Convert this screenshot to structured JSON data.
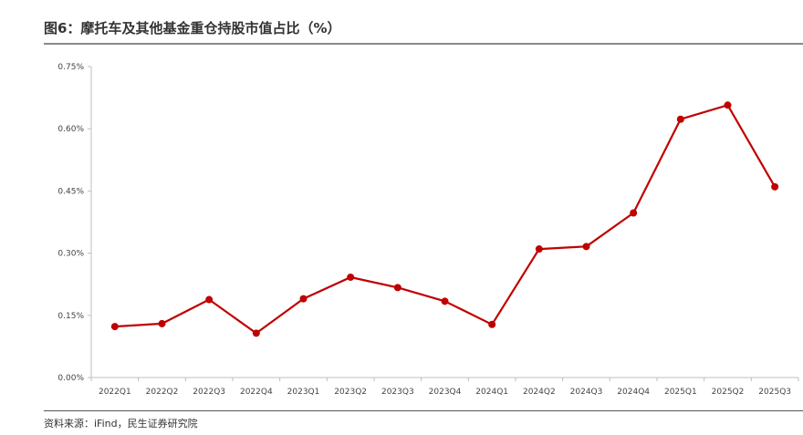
{
  "title": "图6：摩托车及其他基金重仓持股市值占比（%）",
  "source": "资料来源：iFind，民生证券研究院",
  "colors": {
    "line": "#c00000",
    "axis": "#bfbfbf",
    "rule": "#8a8a8a"
  },
  "chart_data": {
    "type": "line",
    "title": "图6：摩托车及其他基金重仓持股市值占比（%）",
    "xlabel": "",
    "ylabel": "",
    "ylim": [
      0,
      0.75
    ],
    "yticks": [
      0,
      0.15,
      0.3,
      0.45,
      0.6,
      0.75
    ],
    "ytick_labels": [
      "0.00%",
      "0.15%",
      "0.30%",
      "0.45%",
      "0.60%",
      "0.75%"
    ],
    "grid": false,
    "legend": "none",
    "categories": [
      "2022Q1",
      "2022Q2",
      "2022Q3",
      "2022Q4",
      "2023Q1",
      "2023Q2",
      "2023Q3",
      "2023Q4",
      "2024Q1",
      "2024Q2",
      "2024Q3",
      "2024Q4",
      "2025Q1",
      "2025Q2",
      "2025Q3"
    ],
    "series": [
      {
        "values": [
          0.123,
          0.13,
          0.188,
          0.107,
          0.19,
          0.242,
          0.217,
          0.184,
          0.128,
          0.31,
          0.316,
          0.397,
          0.623,
          0.657,
          0.46
        ]
      }
    ]
  }
}
